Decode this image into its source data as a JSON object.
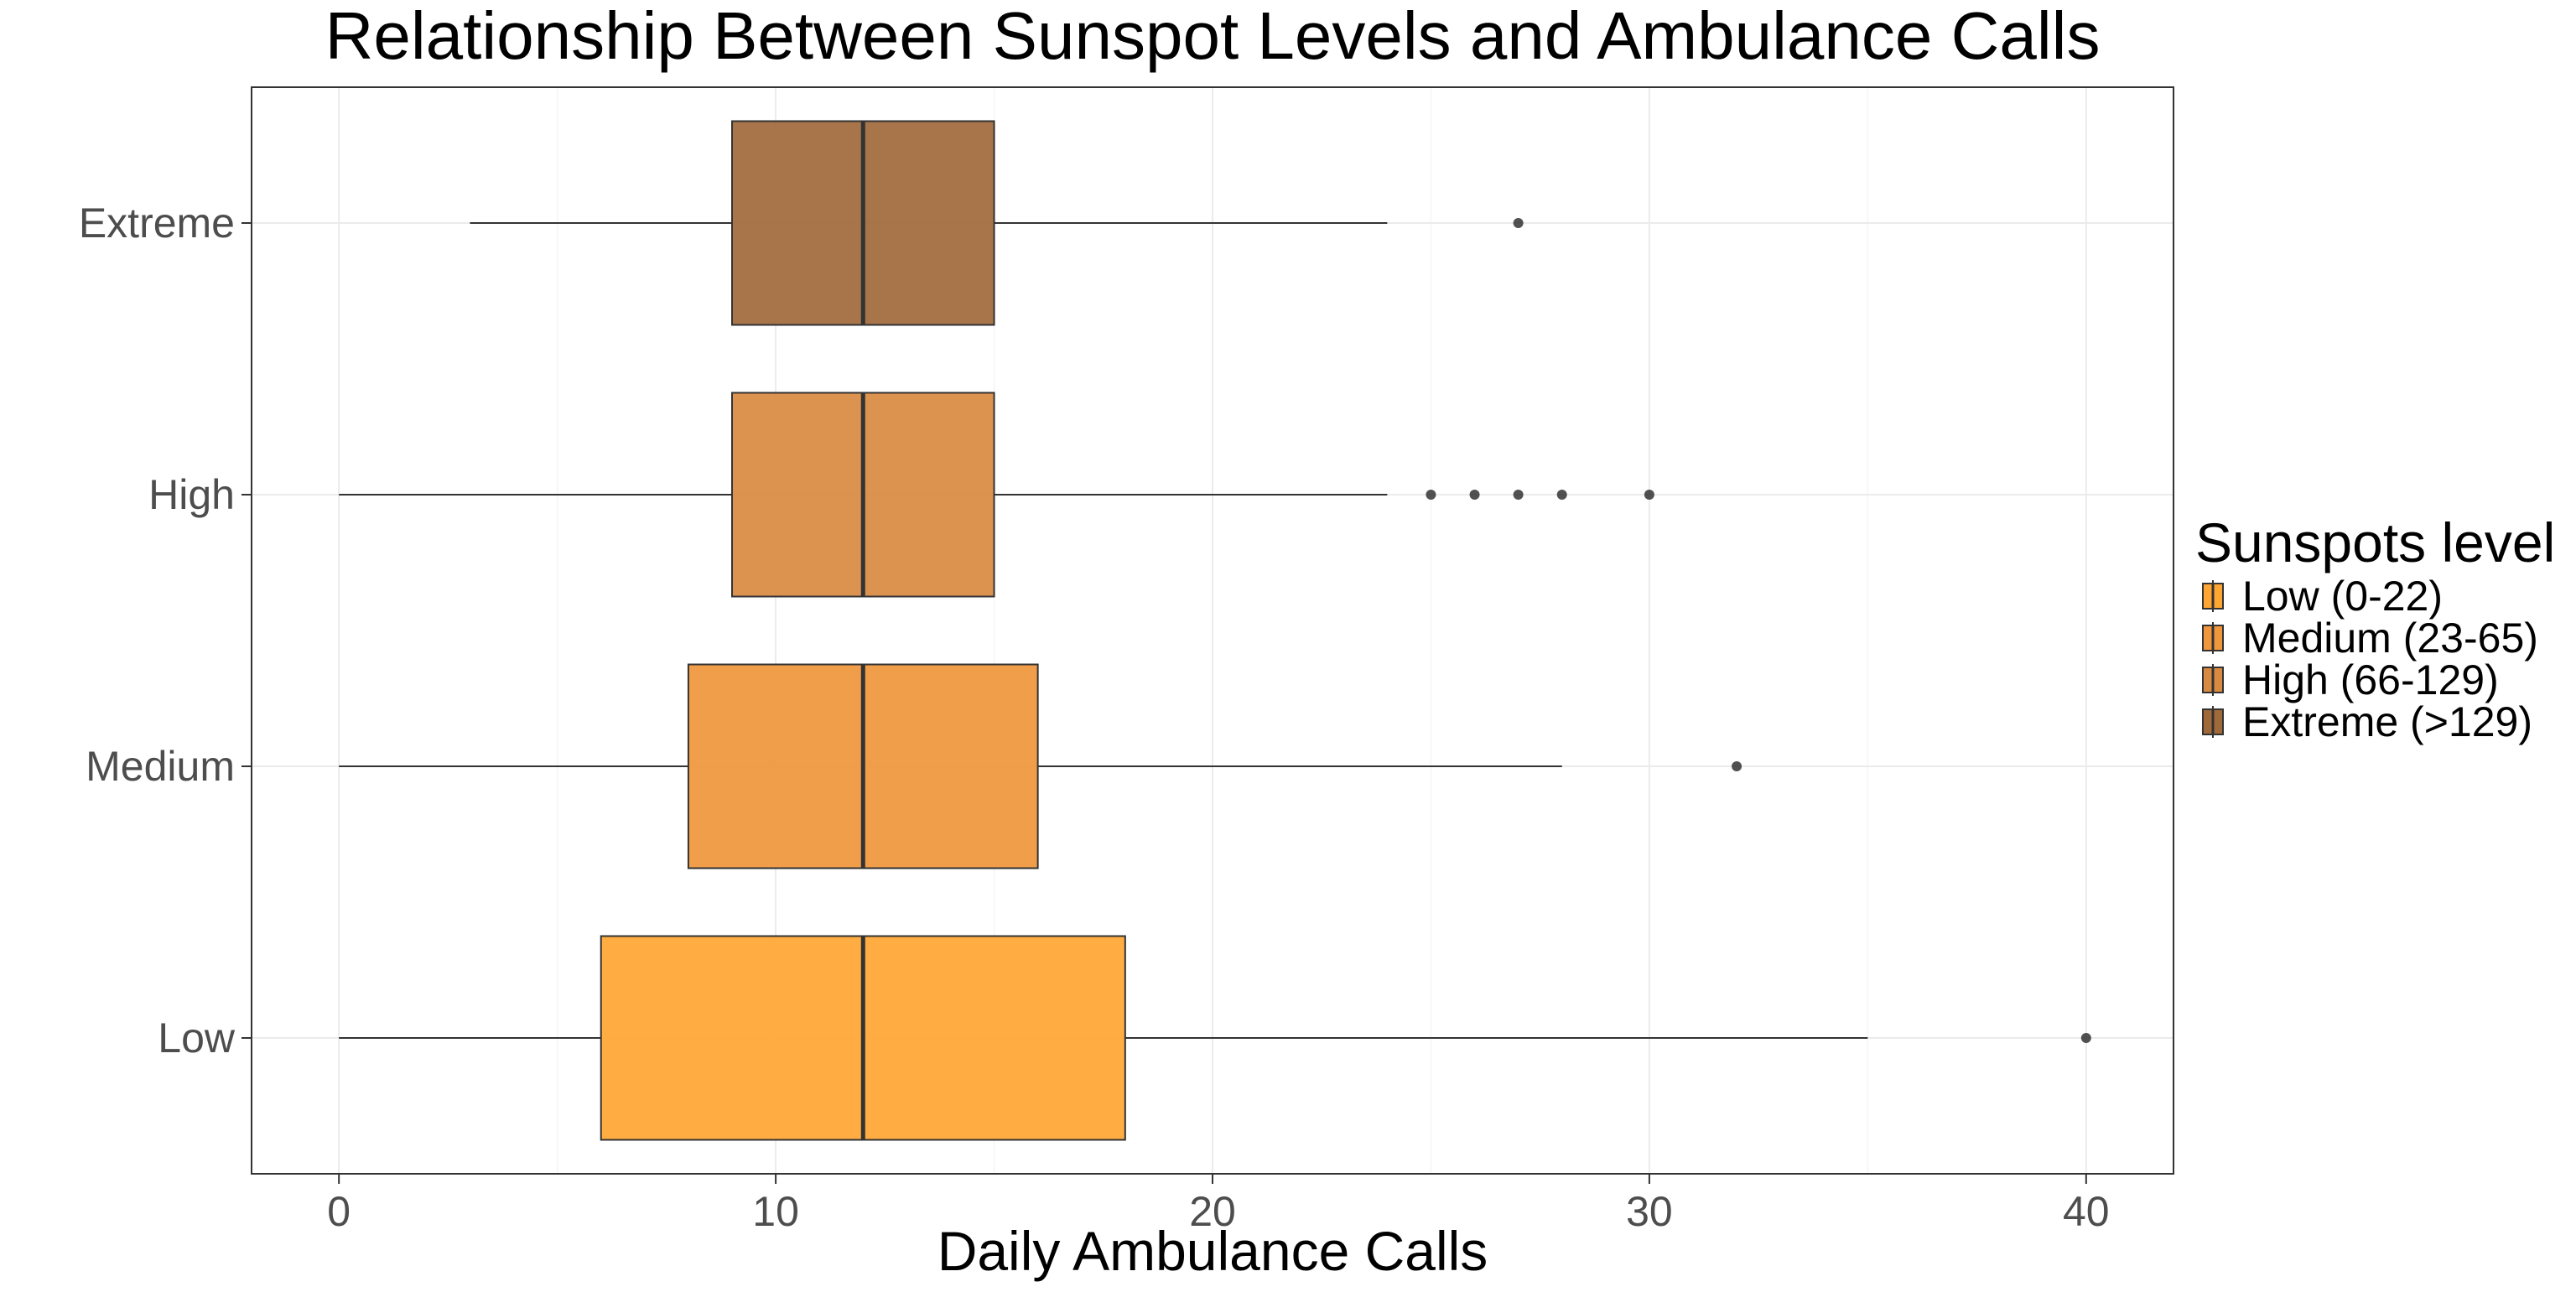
{
  "chart_data": {
    "type": "boxplot",
    "orientation": "horizontal",
    "title": "Relationship Between Sunspot Levels and Ambulance Calls",
    "xlabel": "Daily Ambulance Calls",
    "ylabel": "",
    "xlim": [
      -2,
      42
    ],
    "x_ticks": [
      0,
      10,
      20,
      30,
      40
    ],
    "grid": true,
    "categories": [
      "Low",
      "Medium",
      "High",
      "Extreme"
    ],
    "series": [
      {
        "category": "Low",
        "whisker_low": 0,
        "q1": 6,
        "median": 12,
        "q3": 18,
        "whisker_high": 35,
        "outliers": [
          40
        ],
        "color": "#FFA532"
      },
      {
        "category": "Medium",
        "whisker_low": 0,
        "q1": 8,
        "median": 12,
        "q3": 16,
        "whisker_high": 28,
        "outliers": [
          32
        ],
        "color": "#F0963C"
      },
      {
        "category": "High",
        "whisker_low": 0,
        "q1": 9,
        "median": 12,
        "q3": 15,
        "whisker_high": 24,
        "outliers": [
          25,
          26,
          27,
          28,
          30
        ],
        "color": "#D98A41"
      },
      {
        "category": "Extreme",
        "whisker_low": 3,
        "q1": 9,
        "median": 12,
        "q3": 15,
        "whisker_high": 24,
        "outliers": [
          27
        ],
        "color": "#A0693A"
      }
    ],
    "legend": {
      "title": "Sunspots level",
      "position": "right",
      "entries": [
        {
          "label": "Low (0-22)",
          "color": "#FFA532"
        },
        {
          "label": "Medium (23-65)",
          "color": "#F0963C"
        },
        {
          "label": "High (66-129)",
          "color": "#D98A41"
        },
        {
          "label": "Extreme (>129)",
          "color": "#A0693A"
        }
      ]
    }
  }
}
